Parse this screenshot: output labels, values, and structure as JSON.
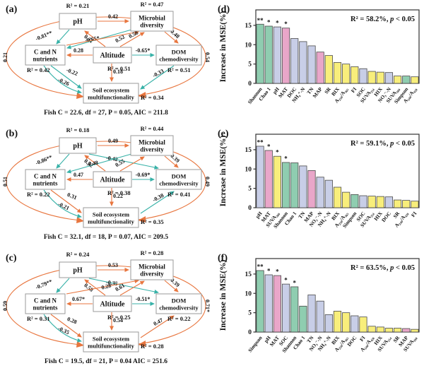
{
  "palette": {
    "green": "#8FCDB0",
    "lavender": "#C8CEE7",
    "pink": "#E9A6C9",
    "yellow": "#F8EE7B",
    "positive_arrow": "#E8763F",
    "negative_arrow": "#38B2A8",
    "box_border": "#9a9a9a",
    "frame": "#333333"
  },
  "sem": {
    "nodes": {
      "ph": [
        "pH"
      ],
      "micro": [
        "Microbial",
        "diversity"
      ],
      "cn": [
        "C and N",
        "nutrients"
      ],
      "alt": [
        "Altitude"
      ],
      "dom": [
        "DOM",
        "chemodiversity"
      ],
      "soil": [
        "Soil ecosystem",
        "multifunctionality"
      ]
    },
    "panels": [
      {
        "tag": "(a)",
        "fit": "Fish C = 22.6, df = 27, P = 0.05, AIC = 211.8",
        "r2": {
          "ph": "R² = 0.21",
          "micro": "R² = 0.47",
          "cn": "R² = 0.42",
          "alt": "R² = 0.51",
          "dom": "R² = 0.51",
          "soil": "R² = 0.34"
        },
        "edges": [
          [
            "ph_micro",
            "0.42"
          ],
          [
            "ph_cn",
            "-0.81**"
          ],
          [
            "alt_ph",
            "0.31"
          ],
          [
            "micro_cn",
            "-0.65*"
          ],
          [
            "alt_micro",
            "0.52"
          ],
          [
            "cn_micro",
            "0.58"
          ],
          [
            "micro_dom",
            "0.48"
          ],
          [
            "alt_cn",
            "0.28"
          ],
          [
            "alt_dom",
            "-0.65*"
          ],
          [
            "alt_soil",
            "0.18"
          ],
          [
            "cn_soil1",
            "-0.22"
          ],
          [
            "cn_soil2",
            "-0.26"
          ],
          [
            "dom_soil",
            "-0.33"
          ],
          [
            "outer_left",
            "0.21"
          ],
          [
            "outer_right",
            "0.54"
          ]
        ]
      },
      {
        "tag": "(b)",
        "fit": "Fish C = 32.1, df = 18, P = 0.07, AIC = 209.5",
        "r2": {
          "ph": "R² = 0.18",
          "micro": "R² = 0.44",
          "cn": "R² = 0.22",
          "alt": "R² = 0.38",
          "dom": "R² = 0.41",
          "soil": "R² = 0.35"
        },
        "edges": [
          [
            "ph_micro",
            "0.49"
          ],
          [
            "ph_cn",
            "-0.86**"
          ],
          [
            "alt_ph",
            "0.52"
          ],
          [
            "ph_dom",
            "-0.42"
          ],
          [
            "micro_cn",
            "-0.48"
          ],
          [
            "alt_micro",
            "0.55"
          ],
          [
            "micro_dom",
            "0.39"
          ],
          [
            "alt_cn",
            "0.47"
          ],
          [
            "alt_dom",
            "-0.69*"
          ],
          [
            "alt_soil",
            "0.22"
          ],
          [
            "cn_soil1",
            "0.31"
          ],
          [
            "cn_soil2",
            "-0.21"
          ],
          [
            "soil_dom",
            "-0.38"
          ],
          [
            "outer_left",
            "0.51"
          ],
          [
            "outer_right",
            "0.49"
          ]
        ]
      },
      {
        "tag": "(c)",
        "fit": "Fish C = 19.5, df = 21, P = 0.04 AIC = 251.6",
        "r2": {
          "ph": "R² = 0.24",
          "micro": "R² = 0.28",
          "cn": "R² = 0.31",
          "alt": "R² = 0.25",
          "dom": "R² = 0.22",
          "soil": "R² = 0.28"
        },
        "edges": [
          [
            "ph_micro",
            "0.53"
          ],
          [
            "ph_cn",
            "-0.79**"
          ],
          [
            "alt_ph",
            "0.58"
          ],
          [
            "ph_dom",
            "-0.35"
          ],
          [
            "cn_micro",
            "0.28"
          ],
          [
            "alt_micro",
            "0.61"
          ],
          [
            "micro_dom",
            "0.39"
          ],
          [
            "alt_cn",
            "0.67*"
          ],
          [
            "alt_dom",
            "-0.51*"
          ],
          [
            "alt_soil",
            "0.54"
          ],
          [
            "cn_soil1",
            "0.28"
          ],
          [
            "cn_soil2",
            "-0.35"
          ],
          [
            "soil_dom",
            "0.47"
          ],
          [
            "outer_left",
            "0.59"
          ],
          [
            "outer_right",
            "0.71*"
          ]
        ]
      }
    ]
  },
  "chart_data": [
    {
      "type": "bar",
      "tag": "(d)",
      "ylabel": "Increase in MSE(%)",
      "ylim": [
        0,
        19
      ],
      "yticks": [
        0,
        5,
        10,
        15
      ],
      "r2_text": "R² = 58.2%,",
      "p_text": "p < 0.05",
      "categories": [
        "Shannon",
        "Chao 1",
        "pH",
        "MAT",
        "DOC",
        "NH₄⁺-N",
        "TN",
        "MAP",
        "SR",
        "BIX",
        "A₂₅₀/A₃₆₅",
        "FI",
        "SOC",
        "SUVA₂₅₄",
        "HIX",
        "NO₃⁻-N",
        "SUVA₂₆₀",
        "Simpson",
        "A₂₄₀/A₄₂₀"
      ],
      "values": [
        15.3,
        14.8,
        14.6,
        14.3,
        11.6,
        10.8,
        9.7,
        8.1,
        7.2,
        5.4,
        5.0,
        4.3,
        3.8,
        3.1,
        2.9,
        2.8,
        1.9,
        1.9,
        1.7
      ],
      "colors": [
        "green",
        "green",
        "lavender",
        "pink",
        "lavender",
        "lavender",
        "lavender",
        "pink",
        "yellow",
        "yellow",
        "yellow",
        "yellow",
        "lavender",
        "yellow",
        "yellow",
        "lavender",
        "yellow",
        "green",
        "yellow"
      ],
      "sig": [
        "**",
        "*",
        "*",
        "*",
        "",
        "",
        "",
        "",
        "",
        "",
        "",
        "",
        "",
        "",
        "",
        "",
        "",
        "",
        ""
      ]
    },
    {
      "type": "bar",
      "tag": "(e)",
      "ylabel": "Increase in MSE(%)",
      "ylim": [
        0,
        19
      ],
      "yticks": [
        0,
        5,
        10,
        15
      ],
      "r2_text": "R² = 59.1%,",
      "p_text": "p < 0.05",
      "categories": [
        "pH",
        "MAT",
        "SUVA₂₆₀",
        "Shannon",
        "Chao 1",
        "TN",
        "MAP",
        "NO₃⁻-N",
        "NH₄⁺-N",
        "BIX",
        "A₂₅₀/A₃₆₅",
        "Simpson",
        "SOC",
        "SUVA₂₅₄",
        "HIX",
        "DOC",
        "SR",
        "A₂₄₀/A₄₂₀",
        "FI"
      ],
      "values": [
        15.9,
        14.8,
        13.3,
        11.7,
        11.6,
        10.8,
        9.6,
        7.9,
        7.1,
        5.3,
        4.0,
        3.4,
        3.1,
        3.0,
        2.9,
        2.8,
        2.0,
        1.9,
        1.7
      ],
      "colors": [
        "lavender",
        "pink",
        "yellow",
        "green",
        "green",
        "lavender",
        "pink",
        "lavender",
        "lavender",
        "yellow",
        "yellow",
        "green",
        "lavender",
        "yellow",
        "yellow",
        "lavender",
        "yellow",
        "yellow",
        "yellow"
      ],
      "sig": [
        "**",
        "*",
        "*",
        "*",
        "",
        "",
        "",
        "",
        "",
        "",
        "",
        "",
        "",
        "",
        "",
        "",
        "",
        "",
        ""
      ]
    },
    {
      "type": "bar",
      "tag": "(f)",
      "ylabel": "Increase in MSE(%)",
      "ylim": [
        0,
        19
      ],
      "yticks": [
        0,
        5,
        10,
        15
      ],
      "r2_text": "R² = 63.5%,",
      "p_text": "p < 0.05",
      "categories": [
        "Simpson",
        "pH",
        "MAT",
        "SOC",
        "Shannon",
        "Chao 1",
        "TN",
        "NO₃⁻-N",
        "NH₄⁺-N",
        "BIX",
        "A₂₅₀/A₃₆₅",
        "DOC",
        "FI",
        "A₂₄₀/A₄₂₀",
        "HIX",
        "SUVA₂₅₄",
        "SR",
        "MAP",
        "SUVA₂₆₀"
      ],
      "values": [
        15.9,
        14.8,
        14.6,
        12.4,
        11.7,
        6.7,
        9.6,
        8.0,
        4.5,
        5.4,
        5.0,
        4.2,
        3.9,
        1.5,
        1.3,
        1.0,
        1.0,
        0.9,
        0.7
      ],
      "colors": [
        "green",
        "lavender",
        "pink",
        "lavender",
        "green",
        "green",
        "lavender",
        "lavender",
        "lavender",
        "yellow",
        "yellow",
        "lavender",
        "yellow",
        "yellow",
        "yellow",
        "yellow",
        "yellow",
        "pink",
        "yellow"
      ],
      "sig": [
        "**",
        "*",
        "*",
        "*",
        "*",
        "",
        "",
        "",
        "",
        "",
        "",
        "",
        "",
        "",
        "",
        "",
        "",
        "",
        ""
      ]
    }
  ]
}
